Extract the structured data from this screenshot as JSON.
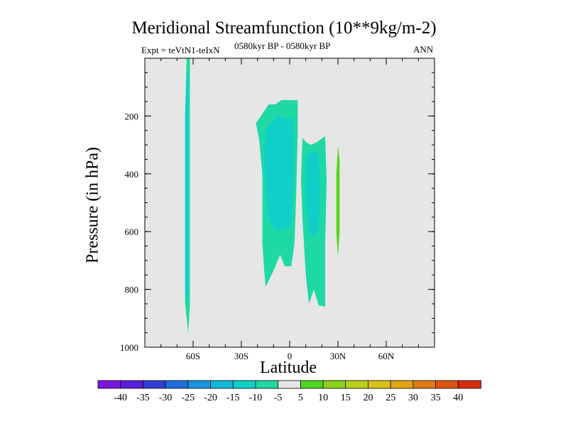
{
  "chart_data": {
    "type": "contour",
    "title": "Meridional Streamfunction (10**9kg/m-2)",
    "subtitle_left": "Expt = teVtN1-teIxN",
    "subtitle_center": "0580kyr BP - 0580kyr BP",
    "subtitle_right": "ANN",
    "xlabel": "Latitude",
    "ylabel": "Pressure (in hPa)",
    "xlim": [
      -90,
      90
    ],
    "ylim": [
      1000,
      0
    ],
    "x_ticks": [
      {
        "value": -60,
        "label": "60S"
      },
      {
        "value": -30,
        "label": "30S"
      },
      {
        "value": 0,
        "label": "0"
      },
      {
        "value": 30,
        "label": "30N"
      },
      {
        "value": 60,
        "label": "60N"
      }
    ],
    "y_ticks": [
      {
        "value": 200,
        "label": "200"
      },
      {
        "value": 400,
        "label": "400"
      },
      {
        "value": 600,
        "label": "600"
      },
      {
        "value": 800,
        "label": "800"
      },
      {
        "value": 1000,
        "label": "1000"
      }
    ],
    "colorbar": {
      "labels": [
        "-40",
        "-35",
        "-30",
        "-25",
        "-20",
        "-15",
        "-10",
        "-5",
        "5",
        "10",
        "15",
        "20",
        "25",
        "30",
        "35",
        "40"
      ],
      "colors": [
        "#7b16e0",
        "#5a1fd8",
        "#2f3fd6",
        "#1f6fdb",
        "#1a94dc",
        "#12b7d9",
        "#10cfc8",
        "#1fd9a4",
        "#e6e6e6",
        "#4fd61e",
        "#8ad21a",
        "#b8cf17",
        "#d8c214",
        "#e0a512",
        "#e07b10",
        "#de5410",
        "#d92b0e"
      ]
    },
    "regions": [
      {
        "name": "southern-high-lat-cell",
        "level": -10,
        "color": "#1fd9a4",
        "points": [
          [
            -64,
            0
          ],
          [
            -62,
            0
          ],
          [
            -62,
            620
          ],
          [
            -62,
            850
          ],
          [
            -63,
            950
          ],
          [
            -65,
            850
          ],
          [
            -65,
            200
          ]
        ]
      },
      {
        "name": "southern-high-lat-core",
        "level": -15,
        "color": "#10cfc8",
        "points": [
          [
            -64,
            50
          ],
          [
            -63,
            50
          ],
          [
            -63,
            800
          ],
          [
            -64,
            850
          ],
          [
            -65,
            800
          ],
          [
            -65,
            200
          ]
        ]
      },
      {
        "name": "tropical-south-cell",
        "level": -10,
        "color": "#1fd9a4",
        "points": [
          [
            -21,
            225
          ],
          [
            -13,
            160
          ],
          [
            -9,
            160
          ],
          [
            -5,
            145
          ],
          [
            5,
            145
          ],
          [
            5,
            260
          ],
          [
            4,
            480
          ],
          [
            3,
            640
          ],
          [
            1,
            720
          ],
          [
            -3,
            720
          ],
          [
            -6,
            680
          ],
          [
            -10,
            735
          ],
          [
            -13,
            770
          ],
          [
            -15,
            790
          ],
          [
            -16,
            720
          ],
          [
            -17,
            640
          ],
          [
            -17,
            400
          ],
          [
            -19,
            280
          ]
        ]
      },
      {
        "name": "tropical-south-core",
        "level": -15,
        "color": "#10cfc8",
        "points": [
          [
            -15,
            250
          ],
          [
            -8,
            200
          ],
          [
            2,
            210
          ],
          [
            3,
            300
          ],
          [
            2,
            500
          ],
          [
            1,
            580
          ],
          [
            -3,
            590
          ],
          [
            -8,
            600
          ],
          [
            -13,
            560
          ],
          [
            -15,
            450
          ],
          [
            -16,
            330
          ]
        ]
      },
      {
        "name": "tropical-north-cell",
        "level": -10,
        "color": "#1fd9a4",
        "points": [
          [
            8,
            275
          ],
          [
            10,
            290
          ],
          [
            13,
            300
          ],
          [
            17,
            290
          ],
          [
            22,
            270
          ],
          [
            23,
            420
          ],
          [
            22,
            650
          ],
          [
            22,
            860
          ],
          [
            18,
            855
          ],
          [
            15,
            800
          ],
          [
            12,
            850
          ],
          [
            10,
            750
          ],
          [
            8,
            560
          ],
          [
            7,
            420
          ]
        ]
      },
      {
        "name": "tropical-north-core",
        "level": -15,
        "color": "#10cfc8",
        "points": [
          [
            10,
            340
          ],
          [
            14,
            320
          ],
          [
            18,
            330
          ],
          [
            19,
            450
          ],
          [
            18,
            600
          ],
          [
            15,
            620
          ],
          [
            12,
            600
          ],
          [
            10,
            500
          ]
        ]
      },
      {
        "name": "northern-positive-cell",
        "level": 10,
        "color": "#4fd61e",
        "points": [
          [
            30,
            305
          ],
          [
            31,
            350
          ],
          [
            31,
            600
          ],
          [
            30,
            690
          ],
          [
            29,
            600
          ],
          [
            29,
            400
          ]
        ]
      }
    ]
  }
}
